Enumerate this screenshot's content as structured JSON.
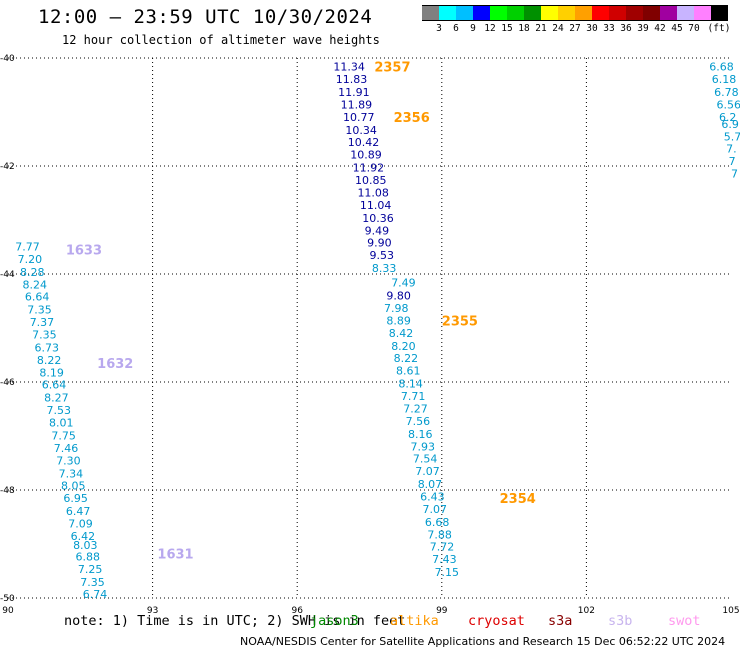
{
  "header": {
    "title": "12:00 — 23:59 UTC 10/30/2024",
    "subtitle": "12 hour collection of altimeter wave heights"
  },
  "legend": {
    "swatches": [
      {
        "color": "#808080",
        "label": ""
      },
      {
        "color": "#00ffff",
        "label": "3"
      },
      {
        "color": "#00bfff",
        "label": "6"
      },
      {
        "color": "#0000ff",
        "label": "9"
      },
      {
        "color": "#00ff00",
        "label": "12"
      },
      {
        "color": "#00d000",
        "label": "15"
      },
      {
        "color": "#009000",
        "label": "18"
      },
      {
        "color": "#ffff00",
        "label": "21"
      },
      {
        "color": "#ffd000",
        "label": "24"
      },
      {
        "color": "#ffa000",
        "label": "27"
      },
      {
        "color": "#ff0000",
        "label": "30"
      },
      {
        "color": "#d00000",
        "label": "33"
      },
      {
        "color": "#a00000",
        "label": "36"
      },
      {
        "color": "#800000",
        "label": "39"
      },
      {
        "color": "#a000a0",
        "label": "42"
      },
      {
        "color": "#c8b4ff",
        "label": "45"
      },
      {
        "color": "#ff80ff",
        "label": "70"
      },
      {
        "color": "#000000",
        "label": "(ft)"
      }
    ]
  },
  "map": {
    "lon_range": [
      90,
      105
    ],
    "lat_range": [
      -50,
      -40
    ],
    "lon_ticks": [
      90,
      93,
      96,
      99,
      102,
      105
    ],
    "lat_ticks": [
      -40,
      -42,
      -44,
      -46,
      -48,
      -50
    ],
    "grid": true,
    "passes": [
      {
        "id": "2357",
        "lon": 97.6,
        "lat": -40.16,
        "color": "#ff9900"
      },
      {
        "id": "2356",
        "lon": 98.0,
        "lat": -41.09,
        "color": "#ff9900"
      },
      {
        "id": "2355",
        "lon": 99.0,
        "lat": -44.86,
        "color": "#ff9900"
      },
      {
        "id": "2354",
        "lon": 100.2,
        "lat": -48.15,
        "color": "#ff9900"
      },
      {
        "id": "1633",
        "lon": 91.2,
        "lat": -43.55,
        "color": "#b8a8ee"
      },
      {
        "id": "1632",
        "lon": 91.85,
        "lat": -45.65,
        "color": "#b8a8ee"
      },
      {
        "id": "1631",
        "lon": 93.1,
        "lat": -49.18,
        "color": "#b8a8ee"
      }
    ],
    "tracks": [
      {
        "color": "#000099",
        "points": [
          {
            "lon": 96.75,
            "lat": -40.16,
            "v": "11.34"
          },
          {
            "lon": 96.8,
            "lat": -40.39,
            "v": "11.83"
          },
          {
            "lon": 96.85,
            "lat": -40.63,
            "v": "11.91"
          },
          {
            "lon": 96.9,
            "lat": -40.86,
            "v": "11.89"
          },
          {
            "lon": 96.95,
            "lat": -41.09,
            "v": "10.77"
          },
          {
            "lon": 97.0,
            "lat": -41.33,
            "v": "10.34"
          },
          {
            "lon": 97.05,
            "lat": -41.56,
            "v": "10.42"
          },
          {
            "lon": 97.1,
            "lat": -41.79,
            "v": "10.89"
          },
          {
            "lon": 97.15,
            "lat": -42.03,
            "v": "11.92"
          },
          {
            "lon": 97.2,
            "lat": -42.26,
            "v": "10.85"
          },
          {
            "lon": 97.25,
            "lat": -42.49,
            "v": "11.08"
          },
          {
            "lon": 97.3,
            "lat": -42.72,
            "v": "11.04"
          },
          {
            "lon": 97.35,
            "lat": -42.96,
            "v": "10.36"
          },
          {
            "lon": 97.4,
            "lat": -43.19,
            "v": "9.49"
          },
          {
            "lon": 97.45,
            "lat": -43.42,
            "v": "9.90"
          },
          {
            "lon": 97.5,
            "lat": -43.65,
            "v": "9.53"
          },
          {
            "lon": 97.85,
            "lat": -44.4,
            "v": "9.80"
          }
        ]
      },
      {
        "color": "#0099cc",
        "points": [
          {
            "lon": 97.55,
            "lat": -43.89,
            "v": "8.33"
          },
          {
            "lon": 97.95,
            "lat": -44.16,
            "v": "7.49"
          },
          {
            "lon": 97.8,
            "lat": -44.63,
            "v": "7.98"
          },
          {
            "lon": 97.85,
            "lat": -44.86,
            "v": "8.89"
          },
          {
            "lon": 97.9,
            "lat": -45.09,
            "v": "8.42"
          },
          {
            "lon": 97.95,
            "lat": -45.33,
            "v": "8.20"
          },
          {
            "lon": 98.0,
            "lat": -45.56,
            "v": "8.22"
          },
          {
            "lon": 98.05,
            "lat": -45.79,
            "v": "8.61"
          },
          {
            "lon": 98.1,
            "lat": -46.03,
            "v": "8.14"
          },
          {
            "lon": 98.15,
            "lat": -46.26,
            "v": "7.71"
          },
          {
            "lon": 98.2,
            "lat": -46.49,
            "v": "7.27"
          },
          {
            "lon": 98.25,
            "lat": -46.72,
            "v": "7.56"
          },
          {
            "lon": 98.3,
            "lat": -46.96,
            "v": "8.16"
          },
          {
            "lon": 98.35,
            "lat": -47.19,
            "v": "7.93"
          },
          {
            "lon": 98.4,
            "lat": -47.42,
            "v": "7.54"
          },
          {
            "lon": 98.45,
            "lat": -47.65,
            "v": "7.07"
          },
          {
            "lon": 98.5,
            "lat": -47.89,
            "v": "8.07"
          },
          {
            "lon": 98.55,
            "lat": -48.12,
            "v": "6.43"
          },
          {
            "lon": 98.6,
            "lat": -48.35,
            "v": "7.07"
          },
          {
            "lon": 98.65,
            "lat": -48.59,
            "v": "6.68"
          },
          {
            "lon": 98.7,
            "lat": -48.82,
            "v": "7.88"
          },
          {
            "lon": 98.75,
            "lat": -49.05,
            "v": "7.72"
          },
          {
            "lon": 98.8,
            "lat": -49.28,
            "v": "7.43"
          },
          {
            "lon": 98.85,
            "lat": -49.52,
            "v": "7.15"
          }
        ]
      },
      {
        "color": "#0099cc",
        "points": [
          {
            "lon": 90.15,
            "lat": -43.49,
            "v": "7.77"
          },
          {
            "lon": 90.2,
            "lat": -43.72,
            "v": "7.20"
          },
          {
            "lon": 90.25,
            "lat": -43.96,
            "v": "8.28"
          },
          {
            "lon": 90.3,
            "lat": -44.19,
            "v": "8.24"
          },
          {
            "lon": 90.35,
            "lat": -44.42,
            "v": "6.64"
          },
          {
            "lon": 90.4,
            "lat": -44.66,
            "v": "7.35"
          },
          {
            "lon": 90.45,
            "lat": -44.89,
            "v": "7.37"
          },
          {
            "lon": 90.5,
            "lat": -45.12,
            "v": "7.35"
          },
          {
            "lon": 90.55,
            "lat": -45.36,
            "v": "6.73"
          },
          {
            "lon": 90.6,
            "lat": -45.59,
            "v": "8.22"
          },
          {
            "lon": 90.65,
            "lat": -45.82,
            "v": "8.19"
          },
          {
            "lon": 90.7,
            "lat": -46.05,
            "v": "6.64"
          },
          {
            "lon": 90.75,
            "lat": -46.29,
            "v": "8.27"
          },
          {
            "lon": 90.8,
            "lat": -46.52,
            "v": "7.53"
          },
          {
            "lon": 90.85,
            "lat": -46.75,
            "v": "8.01"
          },
          {
            "lon": 90.9,
            "lat": -46.99,
            "v": "7.75"
          },
          {
            "lon": 90.95,
            "lat": -47.22,
            "v": "7.46"
          },
          {
            "lon": 91.0,
            "lat": -47.45,
            "v": "7.30"
          },
          {
            "lon": 91.05,
            "lat": -47.69,
            "v": "7.34"
          },
          {
            "lon": 91.1,
            "lat": -47.92,
            "v": "8.05"
          },
          {
            "lon": 91.15,
            "lat": -48.15,
            "v": "6.95"
          },
          {
            "lon": 91.2,
            "lat": -48.39,
            "v": "6.47"
          },
          {
            "lon": 91.25,
            "lat": -48.62,
            "v": "7.09"
          },
          {
            "lon": 91.3,
            "lat": -48.85,
            "v": "6.42"
          },
          {
            "lon": 91.35,
            "lat": -49.02,
            "v": "8.03"
          },
          {
            "lon": 91.4,
            "lat": -49.23,
            "v": "6.88"
          },
          {
            "lon": 91.45,
            "lat": -49.46,
            "v": "7.25"
          },
          {
            "lon": 91.5,
            "lat": -49.7,
            "v": "7.35"
          },
          {
            "lon": 91.55,
            "lat": -49.93,
            "v": "6.74"
          }
        ]
      },
      {
        "color": "#0099cc",
        "points": [
          {
            "lon": 104.55,
            "lat": -40.16,
            "v": "6.68"
          },
          {
            "lon": 104.6,
            "lat": -40.39,
            "v": "6.18"
          },
          {
            "lon": 104.65,
            "lat": -40.63,
            "v": "6.78"
          },
          {
            "lon": 104.7,
            "lat": -40.86,
            "v": "6.56"
          },
          {
            "lon": 104.75,
            "lat": -41.09,
            "v": "6.2"
          },
          {
            "lon": 104.8,
            "lat": -41.22,
            "v": "6.9"
          },
          {
            "lon": 104.85,
            "lat": -41.45,
            "v": "5.7"
          },
          {
            "lon": 104.9,
            "lat": -41.68,
            "v": "7."
          },
          {
            "lon": 104.95,
            "lat": -41.91,
            "v": "7"
          },
          {
            "lon": 105.0,
            "lat": -42.14,
            "v": "7"
          }
        ]
      }
    ]
  },
  "footer": {
    "note": "note:  1) Time is in UTC; 2) SWH is in feet",
    "satellites": [
      {
        "name": "jason3",
        "color": "#008800"
      },
      {
        "name": "altika",
        "color": "#ff9900"
      },
      {
        "name": "cryosat",
        "color": "#dd0000"
      },
      {
        "name": "s3a",
        "color": "#880000"
      },
      {
        "name": "s3b",
        "color": "#c8b4ee"
      },
      {
        "name": "swot",
        "color": "#ff99ee"
      }
    ],
    "credit": "NOAA/NESDIS Center for Satellite Applications and Research    15 Dec 06:52:22 UTC 2024"
  }
}
